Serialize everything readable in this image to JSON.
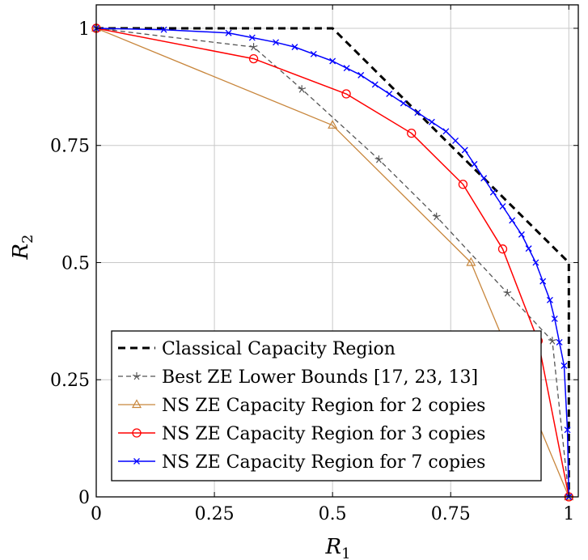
{
  "chart_data": {
    "type": "line",
    "xlabel": "R",
    "xlabel_sub": "1",
    "ylabel": "R",
    "ylabel_sub": "2",
    "xlim": [
      0,
      1.02
    ],
    "ylim": [
      0,
      1.05
    ],
    "xticks": [
      0,
      0.25,
      0.5,
      0.75,
      1
    ],
    "xtick_labels": [
      "0",
      "0.25",
      "0.5",
      "0.75",
      "1"
    ],
    "yticks": [
      0,
      0.25,
      0.5,
      0.75,
      1
    ],
    "ytick_labels": [
      "0",
      "0.25",
      "0.5",
      "0.75",
      "1"
    ],
    "grid": true,
    "legend_position": "bottom-left",
    "series": [
      {
        "name": "Classical Capacity Region",
        "color": "#000000",
        "dash": "9,6",
        "stroke_width": 3,
        "marker": "none",
        "x": [
          0,
          0.5,
          1,
          1
        ],
        "y": [
          1,
          1,
          0.5,
          0
        ]
      },
      {
        "name": "Best ZE Lower Bounds [17, 23, 13]",
        "color": "#555555",
        "dash": "6,4",
        "stroke_width": 1.3,
        "marker": "star",
        "x": [
          0,
          0.333,
          0.435,
          0.598,
          0.72,
          0.87,
          0.965,
          1
        ],
        "y": [
          1,
          0.96,
          0.87,
          0.72,
          0.598,
          0.435,
          0.333,
          0
        ]
      },
      {
        "name": "NS ZE Capacity Region for 2 copies",
        "color": "#C8863C",
        "dash": "",
        "stroke_width": 1.3,
        "marker": "triangle",
        "x": [
          0,
          0.5,
          0.793,
          1
        ],
        "y": [
          1,
          0.793,
          0.5,
          0
        ]
      },
      {
        "name": "NS ZE Capacity Region for 3 copies",
        "color": "#FF0000",
        "dash": "",
        "stroke_width": 1.5,
        "marker": "circle",
        "x": [
          0,
          0.333,
          0.529,
          0.667,
          0.776,
          0.86,
          0.935,
          1
        ],
        "y": [
          1,
          0.935,
          0.86,
          0.776,
          0.667,
          0.529,
          0.333,
          0
        ]
      },
      {
        "name": "NS ZE Capacity Region for 7 copies",
        "color": "#0000FF",
        "dash": "",
        "stroke_width": 1.5,
        "marker": "cross",
        "x": [
          0,
          0.143,
          0.28,
          0.33,
          0.38,
          0.42,
          0.46,
          0.5,
          0.53,
          0.56,
          0.59,
          0.62,
          0.65,
          0.68,
          0.71,
          0.74,
          0.76,
          0.78,
          0.8,
          0.82,
          0.84,
          0.86,
          0.88,
          0.9,
          0.915,
          0.93,
          0.945,
          0.96,
          0.97,
          0.98,
          0.99,
          0.997,
          1
        ],
        "y": [
          1,
          0.997,
          0.99,
          0.98,
          0.97,
          0.96,
          0.945,
          0.93,
          0.915,
          0.9,
          0.88,
          0.86,
          0.84,
          0.82,
          0.8,
          0.78,
          0.76,
          0.74,
          0.71,
          0.68,
          0.65,
          0.62,
          0.59,
          0.56,
          0.53,
          0.5,
          0.46,
          0.42,
          0.38,
          0.33,
          0.28,
          0.143,
          0
        ]
      }
    ]
  }
}
